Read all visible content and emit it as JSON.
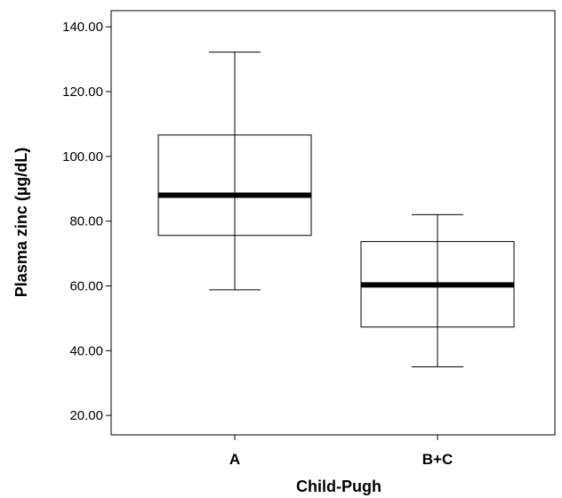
{
  "chart_data": {
    "type": "boxplot",
    "xlabel": "Child-Pugh",
    "ylabel": "Plasma zinc (µg/dL)",
    "ylim": [
      14,
      145
    ],
    "yticks": [
      20,
      40,
      60,
      80,
      100,
      120,
      140
    ],
    "ytick_labels": [
      "20.00",
      "40.00",
      "60.00",
      "80.00",
      "100.00",
      "120.00",
      "140.00"
    ],
    "categories": [
      "A",
      "B+C"
    ],
    "boxes": [
      {
        "category": "A",
        "whisker_low": 58.8,
        "q1": 75.6,
        "median": 88.0,
        "q3": 106.6,
        "whisker_high": 132.2
      },
      {
        "category": "B+C",
        "whisker_low": 35.0,
        "q1": 47.3,
        "median": 60.3,
        "q3": 73.7,
        "whisker_high": 82.0
      }
    ],
    "grid": false
  }
}
